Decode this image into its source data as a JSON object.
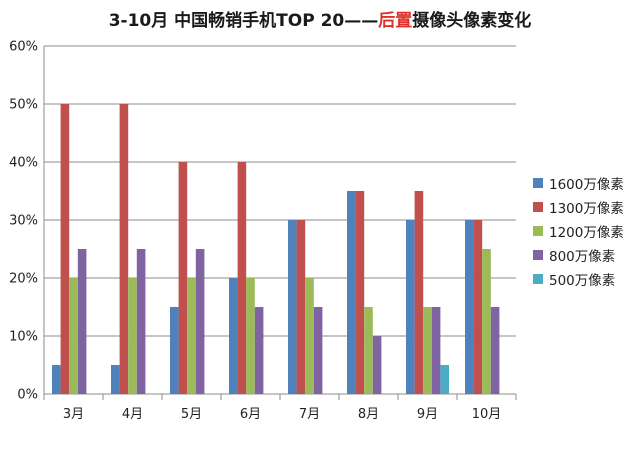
{
  "chart_data": {
    "type": "bar",
    "title_prefix": "3-10月 中国畅销手机TOP 20——",
    "title_highlight": "后置",
    "title_suffix": "摄像头像素变化",
    "categories": [
      "3月",
      "4月",
      "5月",
      "6月",
      "7月",
      "8月",
      "9月",
      "10月"
    ],
    "series": [
      {
        "name": "1600万像素",
        "color": "#4f81bd",
        "values": [
          5,
          5,
          15,
          20,
          30,
          35,
          30,
          30
        ]
      },
      {
        "name": "1300万像素",
        "color": "#c0504d",
        "values": [
          50,
          50,
          40,
          40,
          30,
          35,
          35,
          30
        ]
      },
      {
        "name": "1200万像素",
        "color": "#9bbb59",
        "values": [
          20,
          20,
          20,
          20,
          20,
          15,
          15,
          25
        ]
      },
      {
        "name": "800万像素",
        "color": "#8064a2",
        "values": [
          25,
          25,
          25,
          15,
          15,
          10,
          15,
          15
        ]
      },
      {
        "name": "500万像素",
        "color": "#4bacc6",
        "values": [
          0,
          0,
          0,
          0,
          0,
          0,
          5,
          0
        ]
      }
    ],
    "yticks": [
      "0%",
      "10%",
      "20%",
      "30%",
      "40%",
      "50%",
      "60%"
    ],
    "ylim": [
      0,
      60
    ],
    "grid": true,
    "legend_position": "right"
  }
}
